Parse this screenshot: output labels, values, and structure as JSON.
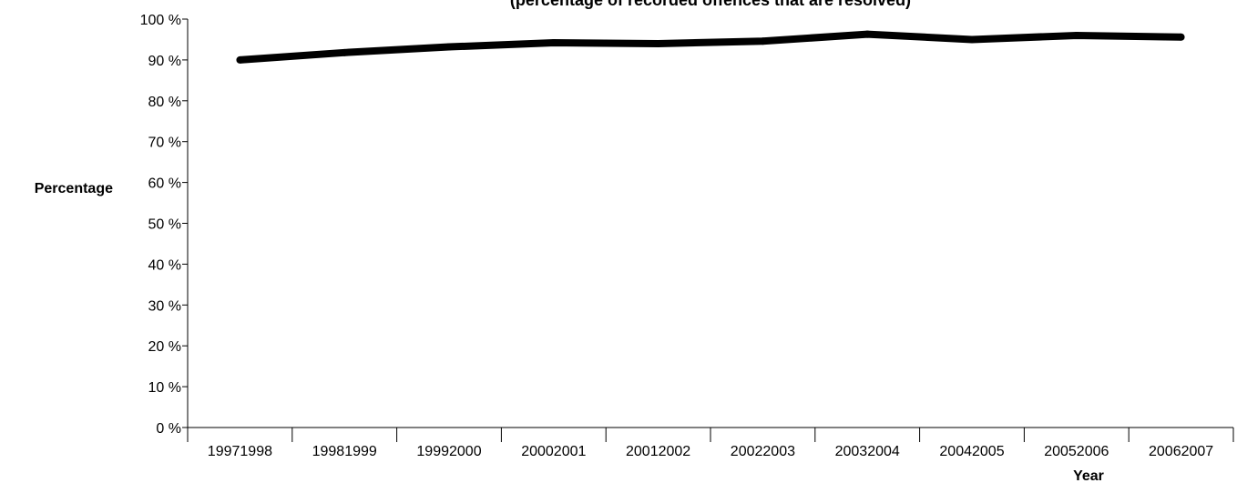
{
  "chart_data": {
    "type": "line",
    "subtitle": "(percentage of recorded offences that are resolved)",
    "xlabel": "Year",
    "ylabel": "Percentage",
    "categories": [
      "19971998",
      "19981999",
      "19992000",
      "20002001",
      "20012002",
      "20022003",
      "20032004",
      "20042005",
      "20052006",
      "20062007"
    ],
    "series": [
      {
        "values": [
          90,
          91.8,
          93.2,
          94.2,
          94.0,
          94.6,
          96.3,
          95.0,
          96.0,
          95.6
        ]
      }
    ],
    "ylim": [
      0,
      100
    ],
    "yticks": [
      0,
      10,
      20,
      30,
      40,
      50,
      60,
      70,
      80,
      90,
      100
    ],
    "ytick_labels": [
      "0 %",
      "10 %",
      "20 %",
      "30 %",
      "40 %",
      "50 %",
      "60 %",
      "70 %",
      "80 %",
      "90 %",
      "100 %"
    ],
    "grid": false,
    "line_color": "#000000"
  }
}
